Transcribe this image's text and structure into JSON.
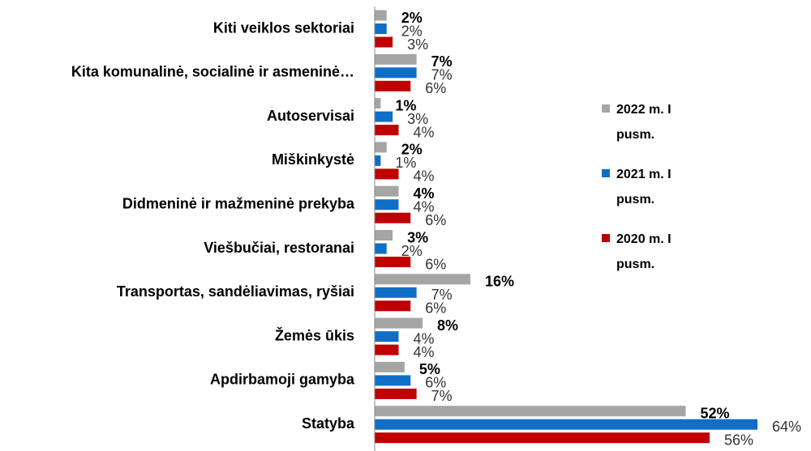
{
  "chart_data": {
    "type": "bar",
    "orientation": "horizontal",
    "categories": [
      "Kiti veiklos sektoriai",
      "Kita komunalinė, socialinė ir asmeninė…",
      "Autoservisai",
      "Miškinkystė",
      "Didmeninė ir mažmeninė prekyba",
      "Viešbučiai, restoranai",
      "Transportas, sandėliavimas, ryšiai",
      "Žemės ūkis",
      "Apdirbamoji gamyba",
      "Statyba"
    ],
    "series": [
      {
        "name": "2022 m. I pusm.",
        "color": "#a5a5a5",
        "values": [
          2,
          7,
          1,
          2,
          4,
          3,
          16,
          8,
          5,
          52
        ],
        "value_labels": [
          "2%",
          "7%",
          "1%",
          "2%",
          "4%",
          "3%",
          "16%",
          "8%",
          "5%",
          "52%"
        ]
      },
      {
        "name": "2021 m. I pusm.",
        "color": "#0f6fc6",
        "values": [
          2,
          7,
          3,
          1,
          4,
          2,
          7,
          4,
          6,
          64
        ],
        "value_labels": [
          "2%",
          "7%",
          "3%",
          "1%",
          "4%",
          "2%",
          "7%",
          "4%",
          "6%",
          "64%"
        ]
      },
      {
        "name": "2020 m. I pusm.",
        "color": "#c00000",
        "values": [
          3,
          6,
          4,
          4,
          6,
          6,
          6,
          4,
          7,
          56
        ],
        "value_labels": [
          "3%",
          "6%",
          "4%",
          "4%",
          "6%",
          "6%",
          "6%",
          "4%",
          "7%",
          "56%"
        ]
      }
    ]
  }
}
